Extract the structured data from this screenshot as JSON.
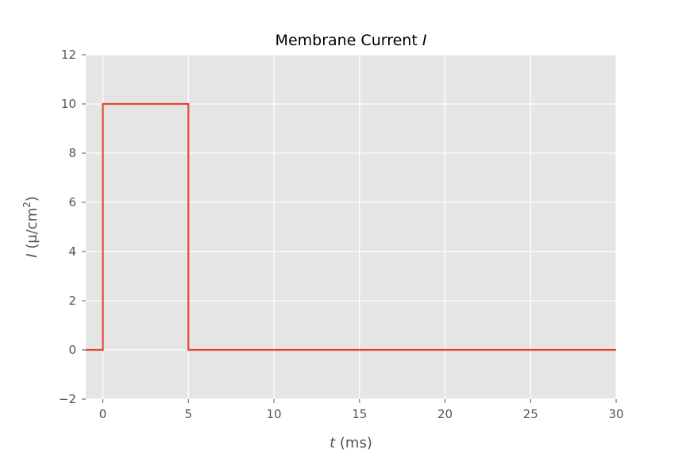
{
  "chart_data": {
    "type": "line",
    "title": {
      "text": "Membrane Current ",
      "var": "I"
    },
    "xlabel": {
      "var": "t",
      "unit": " (ms)"
    },
    "ylabel": {
      "var": "I",
      "unit_pre": " (μ/cm",
      "unit_sup": "2",
      "unit_post": ")"
    },
    "xlim": [
      -1,
      30
    ],
    "ylim": [
      -2,
      12
    ],
    "xticks": [
      0,
      5,
      10,
      15,
      20,
      25,
      30
    ],
    "yticks": [
      -2,
      0,
      2,
      4,
      6,
      8,
      10,
      12
    ],
    "grid": true,
    "series": [
      {
        "color": "#E24A33",
        "x": [
          -1,
          0,
          0,
          5,
          5,
          30
        ],
        "y": [
          0,
          0,
          10,
          10,
          0,
          0
        ]
      }
    ]
  },
  "colors": {
    "plot_background": "#E5E5E5",
    "grid": "#FFFFFF",
    "line": "#E24A33"
  }
}
